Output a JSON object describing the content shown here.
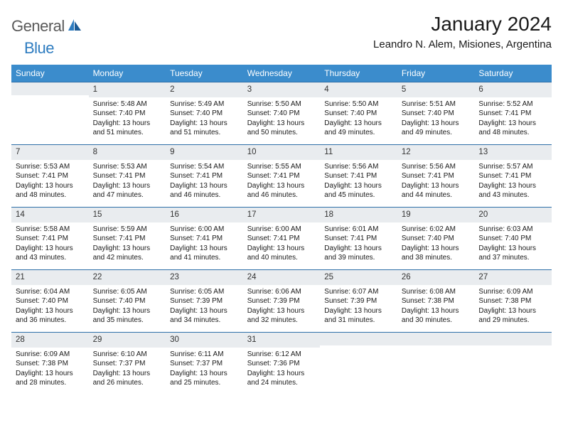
{
  "logo": {
    "general": "General",
    "blue": "Blue"
  },
  "title": "January 2024",
  "location": "Leandro N. Alem, Misiones, Argentina",
  "colors": {
    "header_bg": "#3b8ccc",
    "header_text": "#ffffff",
    "rule": "#2e6fa8",
    "daynum_bg": "#e9ecef",
    "logo_gray": "#5a5a5a",
    "logo_blue": "#2e7cc0"
  },
  "weekdays": [
    "Sunday",
    "Monday",
    "Tuesday",
    "Wednesday",
    "Thursday",
    "Friday",
    "Saturday"
  ],
  "days": [
    {
      "n": "",
      "sunrise": "",
      "sunset": "",
      "daylight": ""
    },
    {
      "n": "1",
      "sunrise": "Sunrise: 5:48 AM",
      "sunset": "Sunset: 7:40 PM",
      "daylight": "Daylight: 13 hours and 51 minutes."
    },
    {
      "n": "2",
      "sunrise": "Sunrise: 5:49 AM",
      "sunset": "Sunset: 7:40 PM",
      "daylight": "Daylight: 13 hours and 51 minutes."
    },
    {
      "n": "3",
      "sunrise": "Sunrise: 5:50 AM",
      "sunset": "Sunset: 7:40 PM",
      "daylight": "Daylight: 13 hours and 50 minutes."
    },
    {
      "n": "4",
      "sunrise": "Sunrise: 5:50 AM",
      "sunset": "Sunset: 7:40 PM",
      "daylight": "Daylight: 13 hours and 49 minutes."
    },
    {
      "n": "5",
      "sunrise": "Sunrise: 5:51 AM",
      "sunset": "Sunset: 7:40 PM",
      "daylight": "Daylight: 13 hours and 49 minutes."
    },
    {
      "n": "6",
      "sunrise": "Sunrise: 5:52 AM",
      "sunset": "Sunset: 7:41 PM",
      "daylight": "Daylight: 13 hours and 48 minutes."
    },
    {
      "n": "7",
      "sunrise": "Sunrise: 5:53 AM",
      "sunset": "Sunset: 7:41 PM",
      "daylight": "Daylight: 13 hours and 48 minutes."
    },
    {
      "n": "8",
      "sunrise": "Sunrise: 5:53 AM",
      "sunset": "Sunset: 7:41 PM",
      "daylight": "Daylight: 13 hours and 47 minutes."
    },
    {
      "n": "9",
      "sunrise": "Sunrise: 5:54 AM",
      "sunset": "Sunset: 7:41 PM",
      "daylight": "Daylight: 13 hours and 46 minutes."
    },
    {
      "n": "10",
      "sunrise": "Sunrise: 5:55 AM",
      "sunset": "Sunset: 7:41 PM",
      "daylight": "Daylight: 13 hours and 46 minutes."
    },
    {
      "n": "11",
      "sunrise": "Sunrise: 5:56 AM",
      "sunset": "Sunset: 7:41 PM",
      "daylight": "Daylight: 13 hours and 45 minutes."
    },
    {
      "n": "12",
      "sunrise": "Sunrise: 5:56 AM",
      "sunset": "Sunset: 7:41 PM",
      "daylight": "Daylight: 13 hours and 44 minutes."
    },
    {
      "n": "13",
      "sunrise": "Sunrise: 5:57 AM",
      "sunset": "Sunset: 7:41 PM",
      "daylight": "Daylight: 13 hours and 43 minutes."
    },
    {
      "n": "14",
      "sunrise": "Sunrise: 5:58 AM",
      "sunset": "Sunset: 7:41 PM",
      "daylight": "Daylight: 13 hours and 43 minutes."
    },
    {
      "n": "15",
      "sunrise": "Sunrise: 5:59 AM",
      "sunset": "Sunset: 7:41 PM",
      "daylight": "Daylight: 13 hours and 42 minutes."
    },
    {
      "n": "16",
      "sunrise": "Sunrise: 6:00 AM",
      "sunset": "Sunset: 7:41 PM",
      "daylight": "Daylight: 13 hours and 41 minutes."
    },
    {
      "n": "17",
      "sunrise": "Sunrise: 6:00 AM",
      "sunset": "Sunset: 7:41 PM",
      "daylight": "Daylight: 13 hours and 40 minutes."
    },
    {
      "n": "18",
      "sunrise": "Sunrise: 6:01 AM",
      "sunset": "Sunset: 7:41 PM",
      "daylight": "Daylight: 13 hours and 39 minutes."
    },
    {
      "n": "19",
      "sunrise": "Sunrise: 6:02 AM",
      "sunset": "Sunset: 7:40 PM",
      "daylight": "Daylight: 13 hours and 38 minutes."
    },
    {
      "n": "20",
      "sunrise": "Sunrise: 6:03 AM",
      "sunset": "Sunset: 7:40 PM",
      "daylight": "Daylight: 13 hours and 37 minutes."
    },
    {
      "n": "21",
      "sunrise": "Sunrise: 6:04 AM",
      "sunset": "Sunset: 7:40 PM",
      "daylight": "Daylight: 13 hours and 36 minutes."
    },
    {
      "n": "22",
      "sunrise": "Sunrise: 6:05 AM",
      "sunset": "Sunset: 7:40 PM",
      "daylight": "Daylight: 13 hours and 35 minutes."
    },
    {
      "n": "23",
      "sunrise": "Sunrise: 6:05 AM",
      "sunset": "Sunset: 7:39 PM",
      "daylight": "Daylight: 13 hours and 34 minutes."
    },
    {
      "n": "24",
      "sunrise": "Sunrise: 6:06 AM",
      "sunset": "Sunset: 7:39 PM",
      "daylight": "Daylight: 13 hours and 32 minutes."
    },
    {
      "n": "25",
      "sunrise": "Sunrise: 6:07 AM",
      "sunset": "Sunset: 7:39 PM",
      "daylight": "Daylight: 13 hours and 31 minutes."
    },
    {
      "n": "26",
      "sunrise": "Sunrise: 6:08 AM",
      "sunset": "Sunset: 7:38 PM",
      "daylight": "Daylight: 13 hours and 30 minutes."
    },
    {
      "n": "27",
      "sunrise": "Sunrise: 6:09 AM",
      "sunset": "Sunset: 7:38 PM",
      "daylight": "Daylight: 13 hours and 29 minutes."
    },
    {
      "n": "28",
      "sunrise": "Sunrise: 6:09 AM",
      "sunset": "Sunset: 7:38 PM",
      "daylight": "Daylight: 13 hours and 28 minutes."
    },
    {
      "n": "29",
      "sunrise": "Sunrise: 6:10 AM",
      "sunset": "Sunset: 7:37 PM",
      "daylight": "Daylight: 13 hours and 26 minutes."
    },
    {
      "n": "30",
      "sunrise": "Sunrise: 6:11 AM",
      "sunset": "Sunset: 7:37 PM",
      "daylight": "Daylight: 13 hours and 25 minutes."
    },
    {
      "n": "31",
      "sunrise": "Sunrise: 6:12 AM",
      "sunset": "Sunset: 7:36 PM",
      "daylight": "Daylight: 13 hours and 24 minutes."
    },
    {
      "n": "",
      "sunrise": "",
      "sunset": "",
      "daylight": ""
    },
    {
      "n": "",
      "sunrise": "",
      "sunset": "",
      "daylight": ""
    },
    {
      "n": "",
      "sunrise": "",
      "sunset": "",
      "daylight": ""
    }
  ]
}
